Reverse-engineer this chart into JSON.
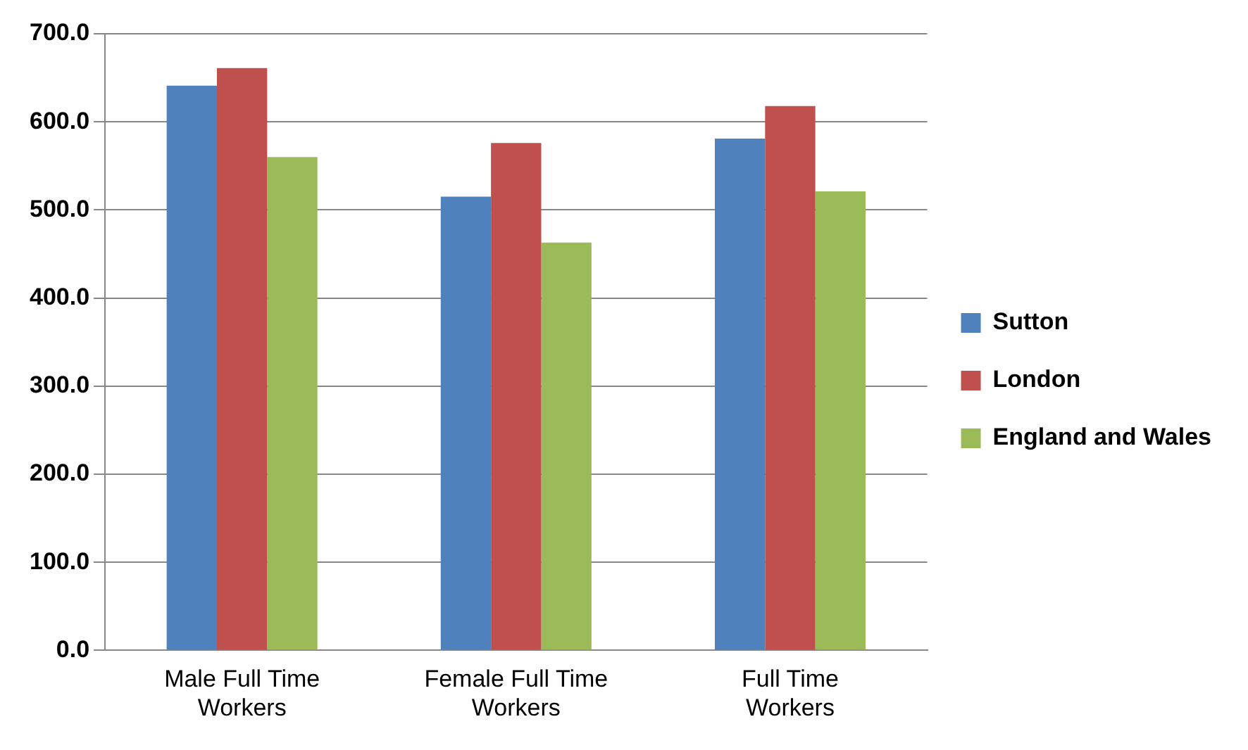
{
  "chart_data": {
    "type": "bar",
    "categories": [
      "Male Full Time Workers",
      "Female Full Time Workers",
      "Full Time Workers"
    ],
    "series": [
      {
        "name": "Sutton",
        "color": "#4f81bd",
        "values": [
          641,
          515,
          581
        ]
      },
      {
        "name": "London",
        "color": "#c0504d",
        "values": [
          661,
          576,
          618
        ]
      },
      {
        "name": "England and Wales",
        "color": "#9bbb59",
        "values": [
          560,
          463,
          521
        ]
      }
    ],
    "ylim": [
      0,
      700
    ],
    "yticks": [
      {
        "value": 0,
        "label": "0.0"
      },
      {
        "value": 100,
        "label": "100.0"
      },
      {
        "value": 200,
        "label": "200.0"
      },
      {
        "value": 300,
        "label": "300.0"
      },
      {
        "value": 400,
        "label": "400.0"
      },
      {
        "value": 500,
        "label": "500.0"
      },
      {
        "value": 600,
        "label": "600.0"
      },
      {
        "value": 700,
        "label": "700.0"
      }
    ],
    "grid": "y",
    "legend": "right"
  }
}
